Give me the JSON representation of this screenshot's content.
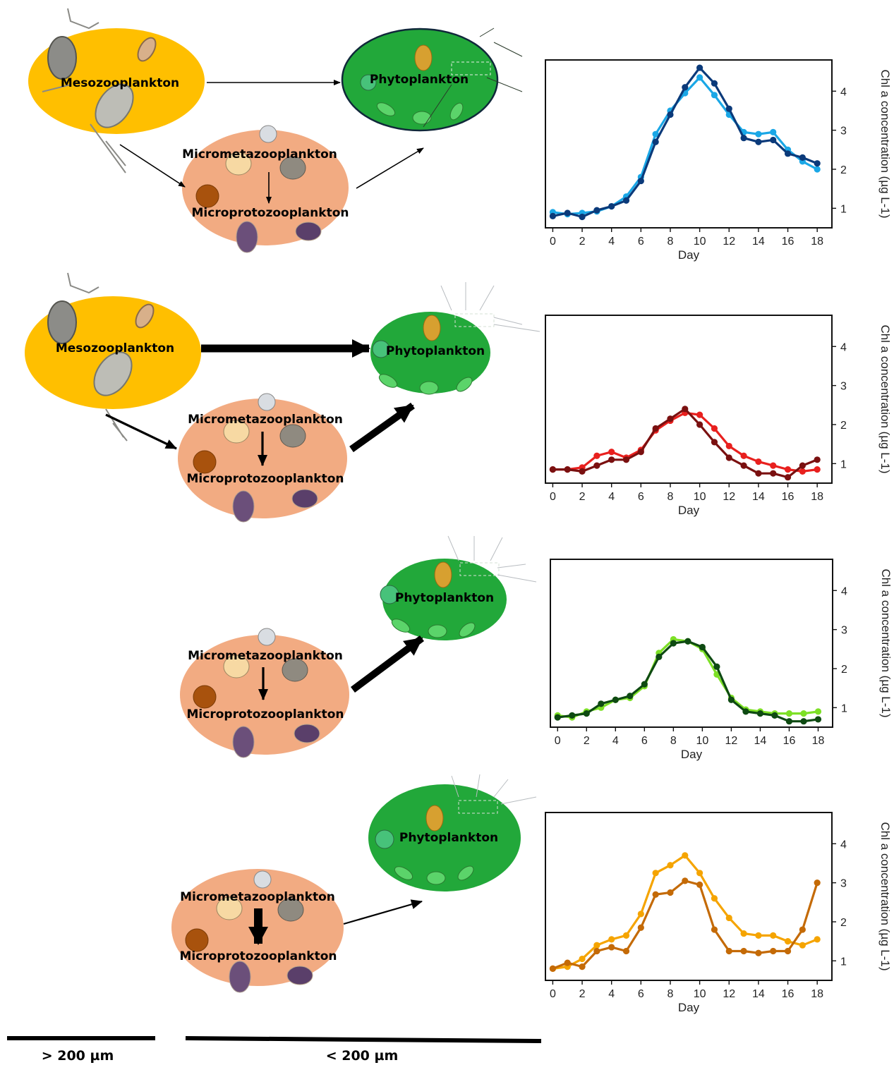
{
  "labels": {
    "meso": "Mesozooplankton",
    "phyto": "Phytoplankton",
    "micrometa": "Micrometazooplankton",
    "microproto": "Microprotozooplankton"
  },
  "size_classes": {
    "large": "> 200 µm",
    "small": "< 200 µm"
  },
  "colors": {
    "meso_fill": "#FFBF00",
    "micro_fill": "#F2AB82",
    "phyto_fill": "#22A83A",
    "arrow": "#000000"
  },
  "chart_data": [
    {
      "type": "line",
      "xlabel": "Day",
      "ylabel": "Chl a concentration (µg L-1)",
      "xlim": [
        -0.5,
        19
      ],
      "ylim": [
        0.5,
        4.8
      ],
      "xticks": [
        0,
        2,
        4,
        6,
        8,
        10,
        12,
        14,
        16,
        18
      ],
      "yticks": [
        1,
        2,
        3,
        4
      ],
      "series": [
        {
          "color": "#1AA7E6",
          "x": [
            0,
            1,
            2,
            3,
            4,
            5,
            6,
            7,
            8,
            9,
            10,
            11,
            12,
            13,
            14,
            15,
            16,
            17,
            18
          ],
          "y": [
            0.9,
            0.85,
            0.88,
            0.92,
            1.05,
            1.3,
            1.8,
            2.9,
            3.5,
            3.95,
            4.35,
            3.9,
            3.4,
            2.95,
            2.9,
            2.95,
            2.5,
            2.2,
            2.0
          ]
        },
        {
          "color": "#0B3A7A",
          "x": [
            0,
            1,
            2,
            3,
            4,
            5,
            6,
            7,
            8,
            9,
            10,
            11,
            12,
            13,
            14,
            15,
            16,
            17,
            18
          ],
          "y": [
            0.8,
            0.88,
            0.78,
            0.95,
            1.05,
            1.2,
            1.7,
            2.7,
            3.4,
            4.1,
            4.6,
            4.2,
            3.55,
            2.8,
            2.7,
            2.75,
            2.4,
            2.3,
            2.15
          ]
        }
      ]
    },
    {
      "type": "line",
      "xlabel": "Day",
      "ylabel": "Chl a concentration (µg L-1)",
      "xlim": [
        -0.5,
        19
      ],
      "ylim": [
        0.5,
        4.8
      ],
      "xticks": [
        0,
        2,
        4,
        6,
        8,
        10,
        12,
        14,
        16,
        18
      ],
      "yticks": [
        1,
        2,
        3,
        4
      ],
      "series": [
        {
          "color": "#E8201E",
          "x": [
            0,
            1,
            2,
            3,
            4,
            5,
            6,
            7,
            8,
            9,
            10,
            11,
            12,
            13,
            14,
            15,
            16,
            17,
            18
          ],
          "y": [
            0.85,
            0.85,
            0.9,
            1.2,
            1.3,
            1.15,
            1.35,
            1.85,
            2.1,
            2.3,
            2.25,
            1.9,
            1.45,
            1.2,
            1.05,
            0.95,
            0.85,
            0.8,
            0.85
          ]
        },
        {
          "color": "#7A1010",
          "x": [
            0,
            1,
            2,
            3,
            4,
            5,
            6,
            7,
            8,
            9,
            10,
            11,
            12,
            13,
            14,
            15,
            16,
            17,
            18
          ],
          "y": [
            0.85,
            0.85,
            0.8,
            0.95,
            1.1,
            1.1,
            1.3,
            1.9,
            2.15,
            2.4,
            2.0,
            1.55,
            1.15,
            0.95,
            0.75,
            0.75,
            0.65,
            0.95,
            1.1
          ]
        }
      ]
    },
    {
      "type": "line",
      "xlabel": "Day",
      "ylabel": "Chl a concentration (µg L-1)",
      "xlim": [
        -0.5,
        19
      ],
      "ylim": [
        0.5,
        4.8
      ],
      "xticks": [
        0,
        2,
        4,
        6,
        8,
        10,
        12,
        14,
        16,
        18
      ],
      "yticks": [
        1,
        2,
        3,
        4
      ],
      "series": [
        {
          "color": "#7DE026",
          "x": [
            0,
            1,
            2,
            3,
            4,
            5,
            6,
            7,
            8,
            9,
            10,
            11,
            12,
            13,
            14,
            15,
            16,
            17,
            18
          ],
          "y": [
            0.8,
            0.75,
            0.9,
            1.0,
            1.2,
            1.25,
            1.55,
            2.4,
            2.75,
            2.7,
            2.5,
            1.85,
            1.25,
            0.95,
            0.9,
            0.85,
            0.85,
            0.85,
            0.9
          ]
        },
        {
          "color": "#0E4A12",
          "x": [
            0,
            1,
            2,
            3,
            4,
            5,
            6,
            7,
            8,
            9,
            10,
            11,
            12,
            13,
            14,
            15,
            16,
            17,
            18
          ],
          "y": [
            0.75,
            0.8,
            0.85,
            1.1,
            1.2,
            1.3,
            1.6,
            2.3,
            2.65,
            2.7,
            2.55,
            2.05,
            1.2,
            0.9,
            0.85,
            0.8,
            0.65,
            0.65,
            0.7
          ]
        }
      ]
    },
    {
      "type": "line",
      "xlabel": "Day",
      "ylabel": "Chl a concentration (µg L-1)",
      "xlim": [
        -0.5,
        19
      ],
      "ylim": [
        0.5,
        4.8
      ],
      "xticks": [
        0,
        2,
        4,
        6,
        8,
        10,
        12,
        14,
        16,
        18
      ],
      "yticks": [
        1,
        2,
        3,
        4
      ],
      "series": [
        {
          "color": "#F5A400",
          "x": [
            0,
            1,
            2,
            3,
            4,
            5,
            6,
            7,
            8,
            9,
            10,
            11,
            12,
            13,
            14,
            15,
            16,
            17,
            18
          ],
          "y": [
            0.8,
            0.85,
            1.05,
            1.4,
            1.55,
            1.65,
            2.2,
            3.25,
            3.45,
            3.7,
            3.25,
            2.6,
            2.1,
            1.7,
            1.65,
            1.65,
            1.5,
            1.4,
            1.55
          ]
        },
        {
          "color": "#C46A06",
          "x": [
            0,
            1,
            2,
            3,
            4,
            5,
            6,
            7,
            8,
            9,
            10,
            11,
            12,
            13,
            14,
            15,
            16,
            17,
            18
          ],
          "y": [
            0.8,
            0.95,
            0.85,
            1.25,
            1.35,
            1.25,
            1.85,
            2.7,
            2.75,
            3.05,
            2.95,
            1.8,
            1.25,
            1.25,
            1.2,
            1.25,
            1.25,
            1.8,
            3.0
          ]
        }
      ]
    }
  ]
}
